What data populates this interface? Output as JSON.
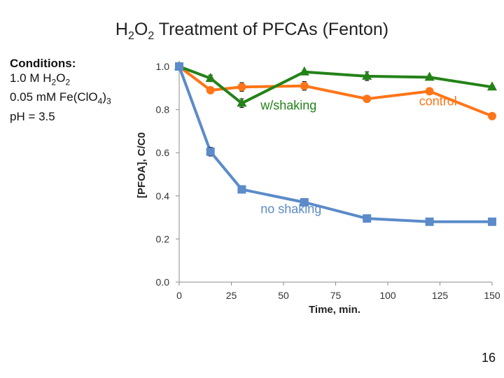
{
  "slide": {
    "title_parts": [
      "H",
      "2",
      "O",
      "2",
      " Treatment of PFCAs (Fenton)"
    ],
    "conditions": {
      "heading": "Conditions:",
      "line1_parts": [
        "1.0 M H",
        "2",
        "O",
        "2"
      ],
      "line2_parts": [
        "0.05 mM Fe(ClO",
        "4",
        ")",
        "3"
      ],
      "line3": "pH = 3.5"
    },
    "page_number": "16"
  },
  "chart_data": {
    "type": "line",
    "xlabel": "Time, min.",
    "ylabel": "[PFOA], C/C0",
    "xlim": [
      0,
      150
    ],
    "ylim": [
      0,
      1.0
    ],
    "x_ticks": [
      "0",
      "25",
      "50",
      "75",
      "100",
      "125",
      "150"
    ],
    "y_ticks": [
      "0.0",
      "0.2",
      "0.4",
      "0.6",
      "0.8",
      "1.0"
    ],
    "grid": false,
    "legend": "none",
    "series": [
      {
        "name": "control",
        "color": "#ff7518",
        "marker": "circle",
        "x": [
          0,
          15,
          30,
          60,
          90,
          120,
          150
        ],
        "y": [
          1.0,
          0.89,
          0.905,
          0.91,
          0.85,
          0.885,
          0.77
        ],
        "error": [
          0.0,
          0.0,
          0.02,
          0.02,
          0.0,
          0.0,
          0.0
        ]
      },
      {
        "name": "w/shaking",
        "color": "#238218",
        "marker": "triangle",
        "x": [
          0,
          15,
          30,
          60,
          90,
          120,
          150
        ],
        "y": [
          1.0,
          0.945,
          0.83,
          0.975,
          0.955,
          0.95,
          0.905
        ],
        "error": [
          0.0,
          0.015,
          0.02,
          0.0,
          0.02,
          0.0,
          0.0
        ]
      },
      {
        "name": "no shaking",
        "color": "#5b8bc9",
        "marker": "square",
        "x": [
          0,
          15,
          30,
          60,
          90,
          120,
          150
        ],
        "y": [
          1.0,
          0.605,
          0.43,
          0.37,
          0.295,
          0.28,
          0.28
        ],
        "error": [
          0.0,
          0.02,
          0.0,
          0.0,
          0.0,
          0.0,
          0.0
        ]
      }
    ],
    "annotations": [
      {
        "text": "control",
        "series": "control",
        "x": 115,
        "y": 0.82
      },
      {
        "text": "w/shaking",
        "series": "w/shaking",
        "x": 39,
        "y": 0.8
      },
      {
        "text": "no shaking",
        "series": "no shaking",
        "x": 39,
        "y": 0.32
      }
    ]
  }
}
